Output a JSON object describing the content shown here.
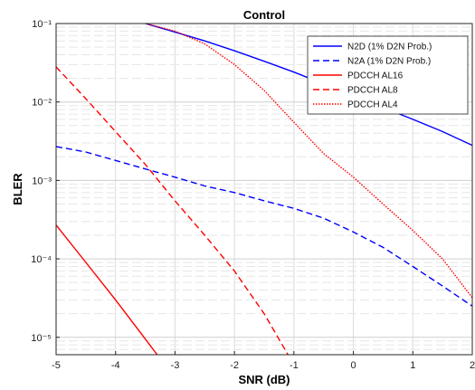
{
  "chart_data": {
    "type": "line",
    "title": "Control",
    "xlabel": "SNR (dB)",
    "ylabel": "BLER",
    "xlim": [
      -5,
      2
    ],
    "ylim": [
      6e-06,
      0.1
    ],
    "yscale": "log",
    "grid": true,
    "legend_position": "top-right",
    "x_ticks": [
      -5,
      -4,
      -3,
      -2,
      -1,
      0,
      1,
      2
    ],
    "x_tick_labels": [
      "-5",
      "-4",
      "-3",
      "-2",
      "-1",
      "0",
      "1",
      "2"
    ],
    "y_ticks": [
      1e-05,
      0.0001,
      0.001,
      0.01,
      0.1
    ],
    "y_tick_labels": [
      "10⁻⁵",
      "10⁻⁴",
      "10⁻³",
      "10⁻²",
      "10⁻¹"
    ],
    "series": [
      {
        "name": "N2D (1% D2N Prob.)",
        "color": "#0000ff",
        "dash": "solid",
        "x": [
          -3.5,
          -3,
          -2.5,
          -2,
          -1.5,
          -1,
          -0.5,
          0,
          0.5,
          1,
          1.5,
          2
        ],
        "y": [
          0.1,
          0.078,
          0.06,
          0.045,
          0.033,
          0.024,
          0.017,
          0.012,
          0.0085,
          0.006,
          0.0042,
          0.0028
        ]
      },
      {
        "name": "N2A (1% D2N Prob.)",
        "color": "#0000ff",
        "dash": "dashed",
        "x": [
          -5,
          -4.5,
          -4,
          -3.5,
          -3,
          -2.5,
          -2,
          -1.5,
          -1,
          -0.5,
          0,
          0.5,
          1,
          1.5,
          2
        ],
        "y": [
          0.0027,
          0.0023,
          0.0018,
          0.0014,
          0.0011,
          0.00085,
          0.0007,
          0.00055,
          0.00044,
          0.00033,
          0.00022,
          0.00014,
          8e-05,
          4.5e-05,
          2.5e-05
        ]
      },
      {
        "name": "PDCCH AL16",
        "color": "#ff0000",
        "dash": "solid",
        "x": [
          -5,
          -4.5,
          -4,
          -3.6,
          -3.3
        ],
        "y": [
          0.00027,
          9e-05,
          3e-05,
          1.2e-05,
          6e-06
        ]
      },
      {
        "name": "PDCCH AL8",
        "color": "#ff0000",
        "dash": "dashed",
        "x": [
          -5,
          -4.5,
          -4,
          -3.5,
          -3,
          -2.5,
          -2,
          -1.5,
          -1.1
        ],
        "y": [
          0.028,
          0.011,
          0.0042,
          0.0016,
          0.00055,
          0.0002,
          7e-05,
          2e-05,
          6e-06
        ]
      },
      {
        "name": "PDCCH AL4",
        "color": "#ff0000",
        "dash": "dotted",
        "x": [
          -3.5,
          -3,
          -2.5,
          -2,
          -1.5,
          -1,
          -0.5,
          0,
          0.5,
          1,
          1.5,
          2
        ],
        "y": [
          0.1,
          0.08,
          0.055,
          0.03,
          0.014,
          0.0055,
          0.0022,
          0.0011,
          0.0005,
          0.00023,
          0.0001,
          3.2e-05
        ]
      }
    ]
  }
}
